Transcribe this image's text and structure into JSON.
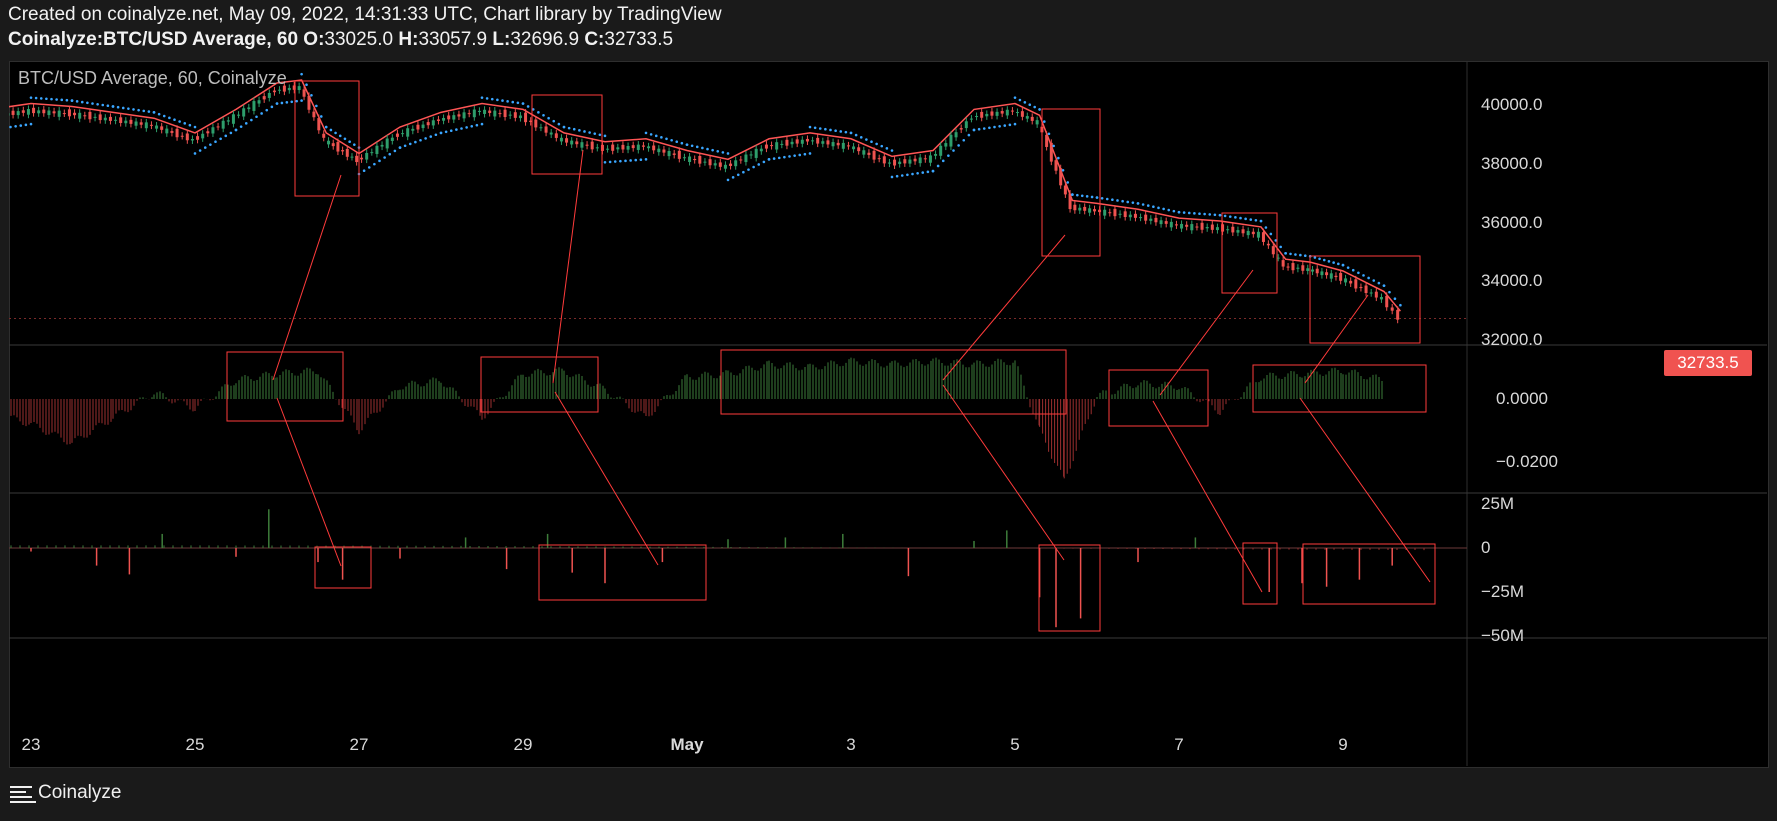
{
  "header": {
    "line1": "Created on coinalyze.net, May 09, 2022, 14:31:33 UTC, Chart library by TradingView",
    "symbol": "Coinalyze:BTC/USD Average, 60",
    "o_label": "O:",
    "o_value": "33025.0",
    "h_label": "H:",
    "h_value": "33057.9",
    "l_label": "L:",
    "l_value": "32696.9",
    "c_label": "C:",
    "c_value": "32733.5"
  },
  "pane_title": "BTC/USD Average, 60, Coinalyze",
  "last_price_badge": "32733.5",
  "footer": {
    "brand": "Coinalyze",
    "logo_icon": "coinalyze-logo-icon"
  },
  "colors": {
    "background": "#000000",
    "up": "#2e9e6b",
    "down": "#ef5350",
    "sar": "#3aa6ff",
    "envelope": "#ff5555",
    "annotation": "#ff3b3b",
    "hist_up": "#3d7d3a",
    "hist_down": "#9b2f2f"
  },
  "chart_data": [
    {
      "type": "line",
      "pane": "price",
      "title": "BTC/USD Average, 60, Coinalyze",
      "x_ticks": [
        "23",
        "25",
        "27",
        "29",
        "May",
        "3",
        "5",
        "7",
        "9"
      ],
      "y_ticks": [
        "40000.0",
        "38000.0",
        "36000.0",
        "34000.0",
        "32000.0"
      ],
      "ylim": [
        31800,
        41000
      ],
      "series": [
        {
          "x": [
            22.5,
            23,
            23.5,
            24,
            24.5,
            25,
            25.5,
            26,
            26.3,
            26.6,
            27,
            27.5,
            28,
            28.5,
            29,
            29.5,
            30,
            30.5,
            31,
            31.5,
            32,
            32.5,
            33,
            33.5,
            34,
            34.5,
            35,
            35.3,
            35.7,
            36,
            36.5,
            37,
            37.5,
            38,
            38.3,
            38.6,
            39,
            39.5,
            39.7
          ],
          "y": [
            39600,
            39800,
            39700,
            39500,
            39300,
            38800,
            39600,
            40500,
            40600,
            38800,
            38100,
            39000,
            39500,
            39800,
            39600,
            38800,
            38500,
            38600,
            38200,
            37900,
            38600,
            38800,
            38600,
            38000,
            38200,
            39600,
            39800,
            39400,
            36500,
            36400,
            36200,
            35900,
            35800,
            35600,
            34500,
            34400,
            34100,
            33400,
            32733.5
          ]
        }
      ],
      "last_value": "32733.5"
    },
    {
      "type": "bar",
      "pane": "oscillator",
      "y_ticks": [
        "0.0000",
        "-0.0200"
      ],
      "ylim": [
        -0.03,
        0.014
      ],
      "x": [
        22.5,
        23,
        23.5,
        24,
        24.5,
        25,
        25.5,
        26,
        26.5,
        27,
        27.5,
        28,
        28.5,
        29,
        29.5,
        30,
        30.5,
        31,
        31.5,
        32,
        32.5,
        33,
        33.5,
        34,
        34.5,
        35,
        35.3,
        35.6,
        36,
        36.5,
        37,
        37.5,
        38,
        38.5,
        39,
        39.5
      ],
      "values": [
        -0.004,
        -0.008,
        -0.014,
        -0.006,
        0.002,
        -0.003,
        0.006,
        0.008,
        0.009,
        -0.01,
        0.004,
        0.006,
        -0.006,
        0.008,
        0.009,
        0.003,
        -0.006,
        0.007,
        0.008,
        0.011,
        0.01,
        0.012,
        0.011,
        0.012,
        0.011,
        0.012,
        -0.01,
        -0.026,
        0.001,
        0.005,
        0.004,
        -0.004,
        0.007,
        0.008,
        0.009,
        0.006
      ]
    },
    {
      "type": "bar",
      "pane": "volume_delta",
      "y_ticks": [
        "25M",
        "0",
        "-25M",
        "-50M"
      ],
      "ylim": [
        -50000000,
        27000000
      ],
      "x": [
        23,
        23.8,
        24.2,
        24.6,
        25.5,
        25.9,
        26.5,
        26.8,
        27.5,
        28.3,
        28.8,
        29.3,
        29.6,
        30,
        30.7,
        31.5,
        32.2,
        32.9,
        33.7,
        34.5,
        34.9,
        35.3,
        35.5,
        35.8,
        36.5,
        37.2,
        38.1,
        38.5,
        38.8,
        39.2,
        39.6
      ],
      "values": [
        -2000000,
        -10000000,
        -15000000,
        8000000,
        -5000000,
        22000000,
        -8000000,
        -18000000,
        -6000000,
        6000000,
        -12000000,
        8000000,
        -14000000,
        -20000000,
        -8000000,
        5000000,
        6000000,
        8000000,
        -16000000,
        4000000,
        10000000,
        -28000000,
        -45000000,
        -40000000,
        -8000000,
        6000000,
        -25000000,
        -20000000,
        -22000000,
        -18000000,
        -10000000
      ]
    }
  ]
}
